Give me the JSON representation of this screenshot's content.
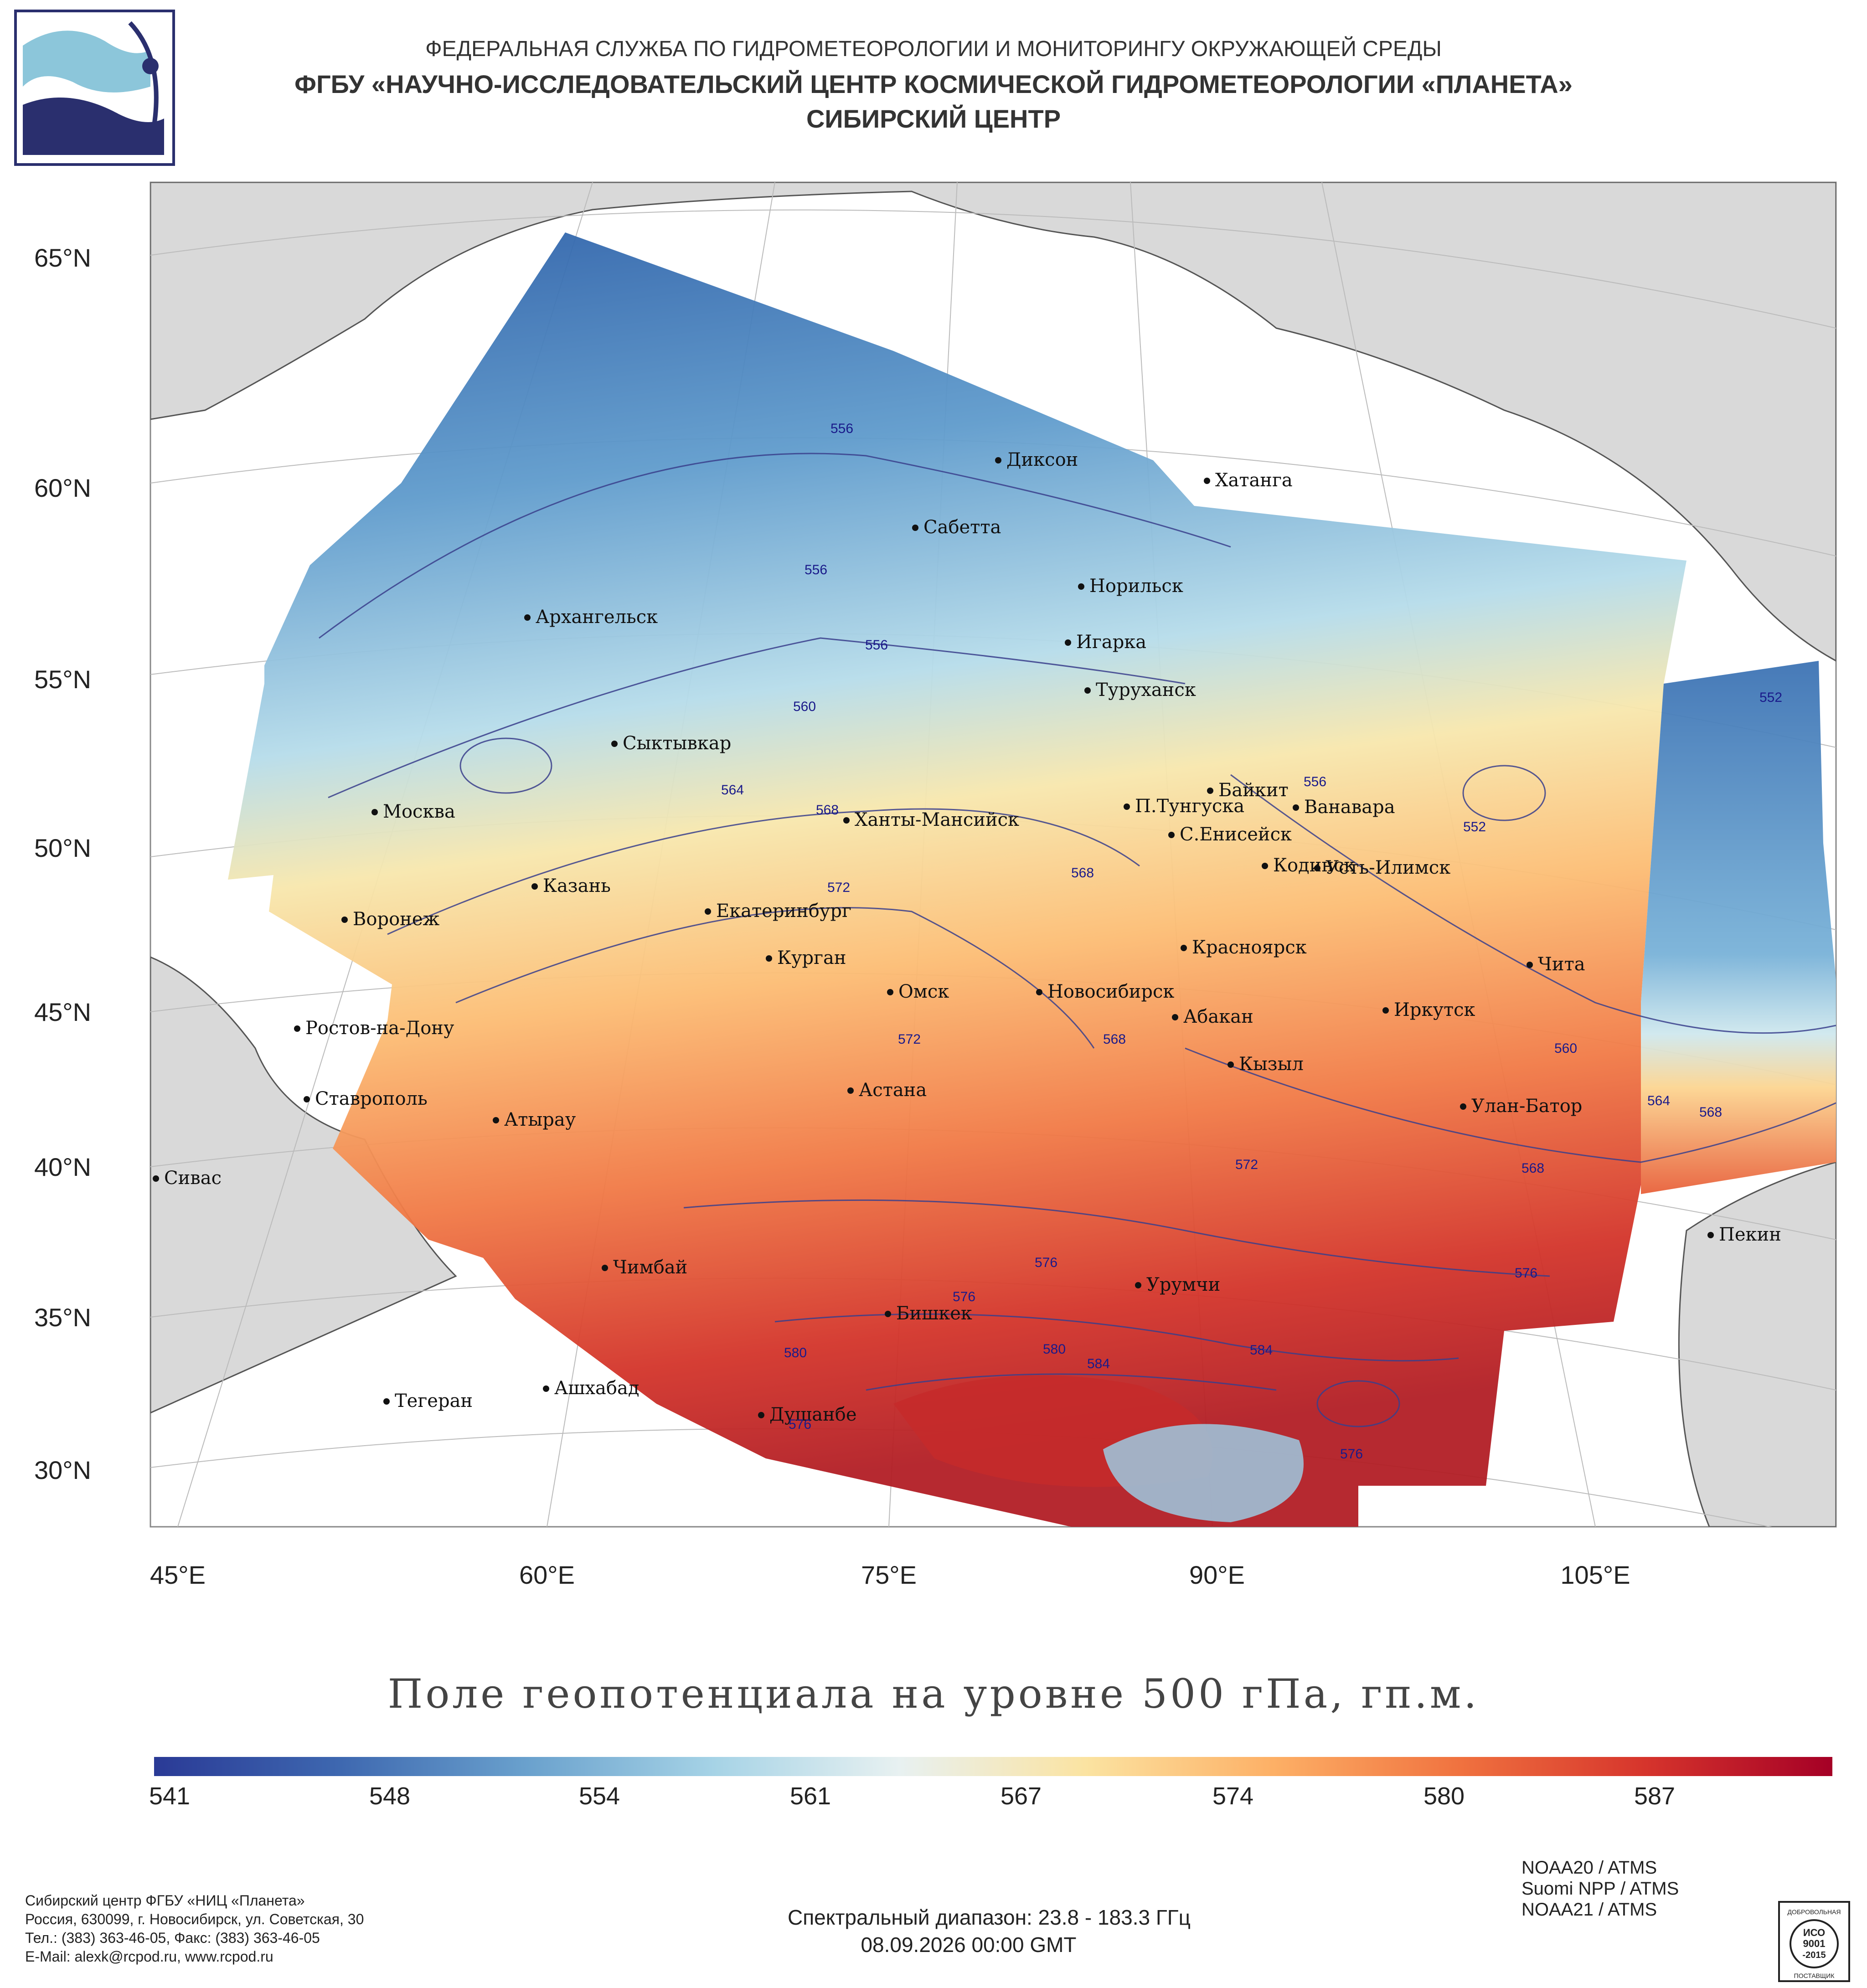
{
  "header": {
    "line1": "ФЕДЕРАЛЬНАЯ СЛУЖБА ПО ГИДРОМЕТЕОРОЛОГИИ И МОНИТОРИНГУ ОКРУЖАЮЩЕЙ СРЕДЫ",
    "line2": "ФГБУ «НАУЧНО-ИССЛЕДОВАТЕЛЬСКИЙ ЦЕНТР КОСМИЧЕСКОЙ ГИДРОМЕТЕОРОЛОГИИ «ПЛАНЕТА»",
    "line3": "СИБИРСКИЙ ЦЕНТР"
  },
  "map": {
    "lat_labels": [
      "65°N",
      "60°N",
      "55°N",
      "50°N",
      "45°N",
      "40°N",
      "35°N",
      "30°N"
    ],
    "lon_labels": [
      "45°E",
      "60°E",
      "75°E",
      "90°E",
      "105°E"
    ],
    "cities": [
      "Диксон",
      "Хатанга",
      "Сабетта",
      "Норильск",
      "Архангельск",
      "Игарка",
      "Туруханск",
      "Сыктывкар",
      "Байкит",
      "П.Тунгуска",
      "Ванавара",
      "Москва",
      "Ханты-Мансийск",
      "С.Енисейск",
      "Кодинск",
      "Усть-Илимск",
      "Казань",
      "Екатеринбург",
      "Воронеж",
      "Красноярск",
      "Курган",
      "Чита",
      "Омск",
      "Новосибирск",
      "Ростов-на-Дону",
      "Абакан",
      "Иркутск",
      "Кызыл",
      "Ставрополь",
      "Астана",
      "Улан-Батор",
      "Атырау",
      "Сивас",
      "Пекин",
      "Чимбай",
      "Урумчи",
      "Бишкек",
      "Ашхабад",
      "Тегеран",
      "Душанбе"
    ],
    "isoline_labels": [
      "556",
      "556",
      "556",
      "560",
      "564",
      "568",
      "572",
      "568",
      "572",
      "568",
      "556",
      "552",
      "552",
      "560",
      "564",
      "568",
      "568",
      "572",
      "576",
      "576",
      "576",
      "580",
      "580",
      "584",
      "584",
      "576",
      "576"
    ]
  },
  "title": "Поле геопотенциала на уровне 500 гПа, гп.м.",
  "colorbar": {
    "ticks": [
      "541",
      "548",
      "554",
      "561",
      "567",
      "574",
      "580",
      "587"
    ],
    "colors": [
      "#2a3a96",
      "#3e68b0",
      "#6aa1cd",
      "#a6d3e6",
      "#e8f1f1",
      "#fbe3a1",
      "#fdb066",
      "#f0723f",
      "#d6342c",
      "#a50026"
    ]
  },
  "sources": [
    "NOAA20 / ATMS",
    "Suomi NPP / ATMS",
    "NOAA21 / ATMS"
  ],
  "footer": {
    "spectral": "Спектральный диапазон: 23.8 - 183.3 ГГц",
    "datetime": "08.09.2026 00:00 GMT",
    "contacts": [
      "Сибирский центр ФГБУ «НИЦ «Планета»",
      "Россия, 630099, г. Новосибирск, ул. Советская, 30",
      "Тел.: (383) 363-46-05, Факс: (383) 363-46-05",
      "E-Mail: alexk@rcpod.ru, www.rcpod.ru"
    ],
    "iso_badge": [
      "ДОБРОВОЛЬНАЯ",
      "ИСО",
      "9001",
      "-2015",
      "ПОСТАВЩИК"
    ]
  }
}
